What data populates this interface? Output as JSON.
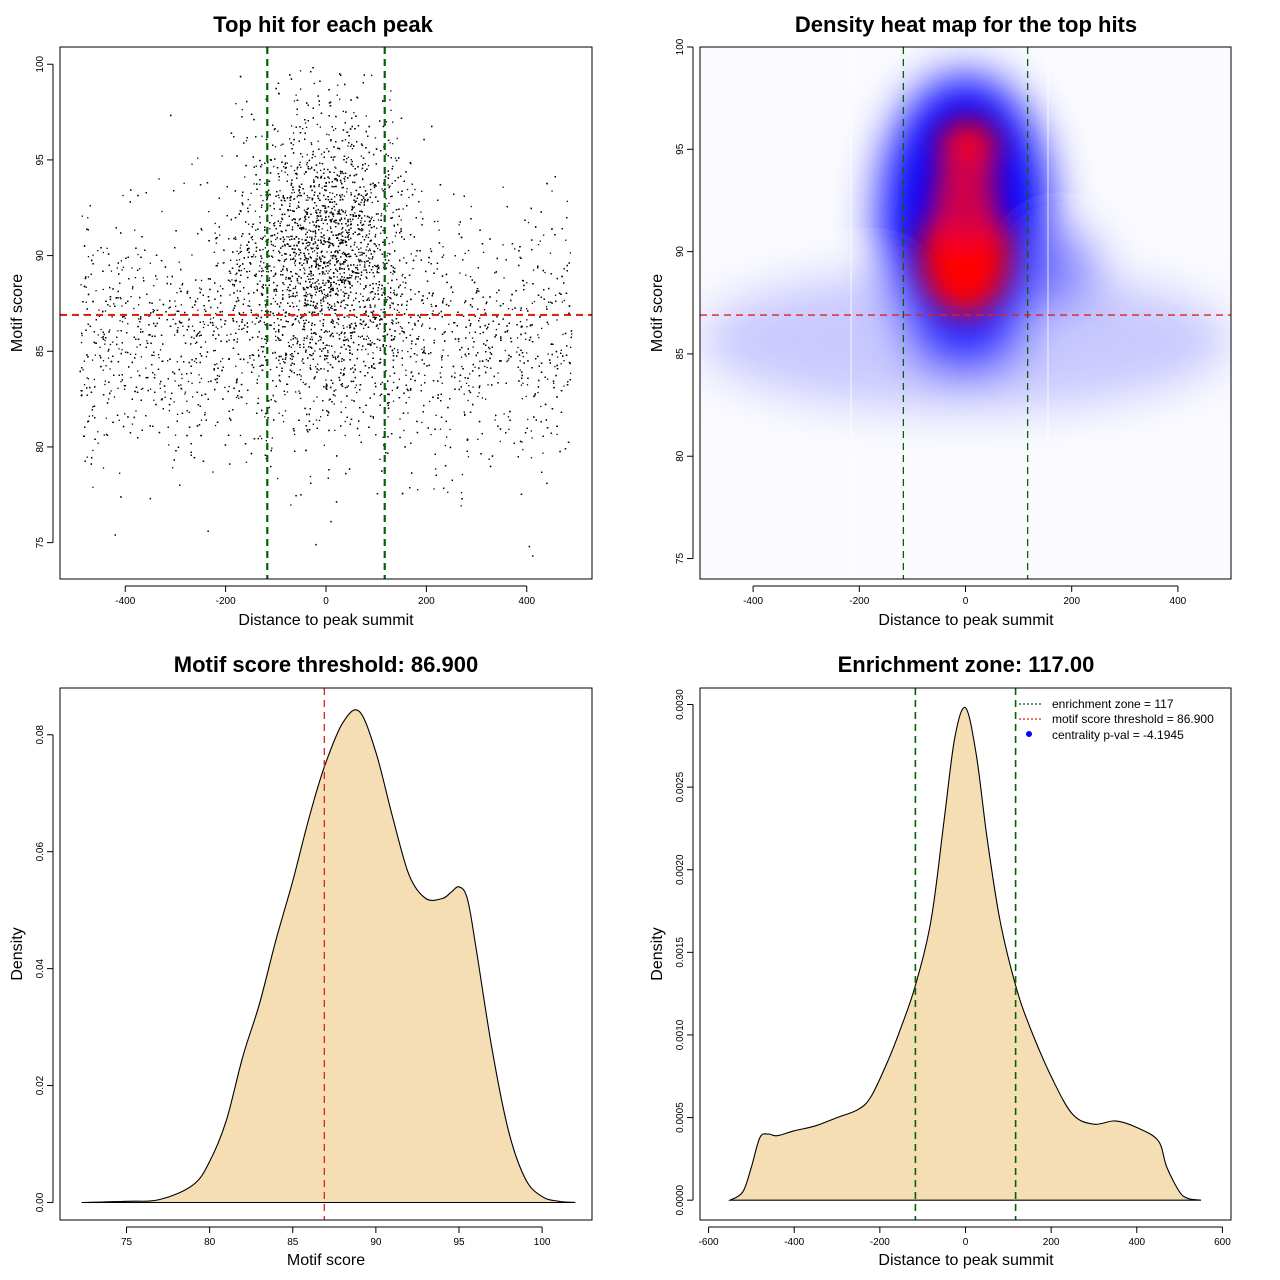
{
  "chart_data": [
    {
      "type": "scatter",
      "title": "Top hit for each peak",
      "xlabel": "Distance to peak summit",
      "ylabel": "Motif score",
      "xlim": [
        -530,
        530
      ],
      "ylim": [
        73.1,
        100.9
      ],
      "xticks": [
        -400,
        -200,
        0,
        200,
        400
      ],
      "yticks": [
        75,
        80,
        85,
        90,
        95,
        100
      ],
      "vlines": [
        {
          "x": -117,
          "color": "#006400",
          "style": "dashed"
        },
        {
          "x": 117,
          "color": "#006400",
          "style": "dashed"
        }
      ],
      "hlines": [
        {
          "y": 86.9,
          "color": "#e0201b",
          "style": "dashed"
        }
      ],
      "approx_points": 9000,
      "point_color": "#000000",
      "sample_points": [
        {
          "x": -420,
          "y": 75.4
        },
        {
          "x": -235,
          "y": 75.6
        },
        {
          "x": -20,
          "y": 74.9
        },
        {
          "x": 10,
          "y": 76.1
        },
        {
          "x": 405,
          "y": 74.8
        },
        {
          "x": 412,
          "y": 74.3
        },
        {
          "x": -350,
          "y": 77.3
        },
        {
          "x": -50,
          "y": 77.5
        },
        {
          "x": 440,
          "y": 78.1
        }
      ]
    },
    {
      "type": "heatmap",
      "title": "Density heat map for the top hits",
      "xlabel": "Distance to peak summit",
      "ylabel": "Motif score",
      "xlim": [
        -500,
        500
      ],
      "ylim": [
        74,
        100
      ],
      "xticks": [
        -400,
        -200,
        0,
        200,
        400
      ],
      "yticks": [
        75,
        80,
        85,
        90,
        95,
        100
      ],
      "vlines": [
        {
          "x": -117,
          "color": "#006400",
          "style": "dashed"
        },
        {
          "x": 117,
          "color": "#006400",
          "style": "dashed"
        }
      ],
      "hlines": [
        {
          "y": 86.9,
          "color": "#e0201b",
          "style": "dashed"
        }
      ],
      "colors": [
        "#ffffff",
        "#0000ff",
        "#ff0000"
      ],
      "hotspots": [
        {
          "x": 0,
          "y": 89.5,
          "level": "high"
        },
        {
          "x": 0,
          "y": 95,
          "level": "high"
        }
      ]
    },
    {
      "type": "area",
      "title": "Motif score threshold: 86.900",
      "xlabel": "Motif score",
      "ylabel": "Density",
      "xlim": [
        71,
        103
      ],
      "ylim": [
        -0.003,
        0.088
      ],
      "xticks": [
        75,
        80,
        85,
        90,
        95,
        100
      ],
      "yticks": [
        0.0,
        0.02,
        0.04,
        0.06,
        0.08
      ],
      "ytick_labels": [
        "0.00",
        "0.02",
        "0.04",
        "0.06",
        "0.08"
      ],
      "fill": "#f5deb3",
      "vlines": [
        {
          "x": 86.9,
          "color": "#e0201b",
          "style": "dashed"
        }
      ],
      "x": [
        72.3,
        75,
        77,
        79,
        80,
        81,
        82,
        83,
        84,
        85,
        86,
        86.9,
        88,
        89,
        90,
        91,
        92,
        93,
        94,
        94.5,
        95,
        95.5,
        96,
        97,
        98,
        99,
        100,
        101,
        102
      ],
      "y": [
        0,
        0.0002,
        0.0005,
        0.003,
        0.007,
        0.014,
        0.025,
        0.034,
        0.045,
        0.055,
        0.066,
        0.0745,
        0.082,
        0.084,
        0.077,
        0.066,
        0.056,
        0.052,
        0.052,
        0.053,
        0.054,
        0.052,
        0.044,
        0.026,
        0.012,
        0.004,
        0.001,
        0.0002,
        0
      ]
    },
    {
      "type": "area",
      "title": "Enrichment zone: 117.00",
      "xlabel": "Distance to peak summit",
      "ylabel": "Density",
      "xlim": [
        -620,
        620
      ],
      "ylim": [
        -0.00012,
        0.0031
      ],
      "xticks": [
        -600,
        -400,
        -200,
        0,
        200,
        400,
        600
      ],
      "yticks": [
        0.0,
        0.0005,
        0.001,
        0.0015,
        0.002,
        0.0025,
        0.003
      ],
      "ytick_labels": [
        "0.0000",
        "0.0005",
        "0.0010",
        "0.0015",
        "0.0020",
        "0.0025",
        "0.0030"
      ],
      "fill": "#f5deb3",
      "vlines": [
        {
          "x": -117,
          "color": "#006400",
          "style": "dashed"
        },
        {
          "x": 117,
          "color": "#006400",
          "style": "dashed"
        }
      ],
      "x": [
        -550,
        -520,
        -500,
        -480,
        -460,
        -440,
        -400,
        -350,
        -300,
        -250,
        -220,
        -180,
        -150,
        -117,
        -80,
        -50,
        -25,
        0,
        25,
        50,
        80,
        117,
        150,
        200,
        250,
        300,
        350,
        400,
        450,
        470,
        500,
        520,
        550
      ],
      "y": [
        0,
        5e-05,
        0.0002,
        0.00038,
        0.0004,
        0.00039,
        0.00042,
        0.00045,
        0.0005,
        0.00055,
        0.00063,
        0.00085,
        0.00105,
        0.0013,
        0.0017,
        0.0023,
        0.0028,
        0.00298,
        0.0027,
        0.0022,
        0.0017,
        0.0013,
        0.00105,
        0.00075,
        0.00052,
        0.00046,
        0.00048,
        0.00044,
        0.00036,
        0.0002,
        5e-05,
        1e-05,
        0
      ],
      "legend": {
        "placement": "top-right",
        "entries": [
          {
            "label": "enrichment zone = 117",
            "color": "#006400",
            "marker": "dotted-line"
          },
          {
            "label": "motif score threshold = 86.900",
            "color": "#e0201b",
            "marker": "dotted-line"
          },
          {
            "label": "centrality p-val = -4.1945",
            "color": "#0000ff",
            "marker": "dot"
          }
        ]
      }
    }
  ]
}
